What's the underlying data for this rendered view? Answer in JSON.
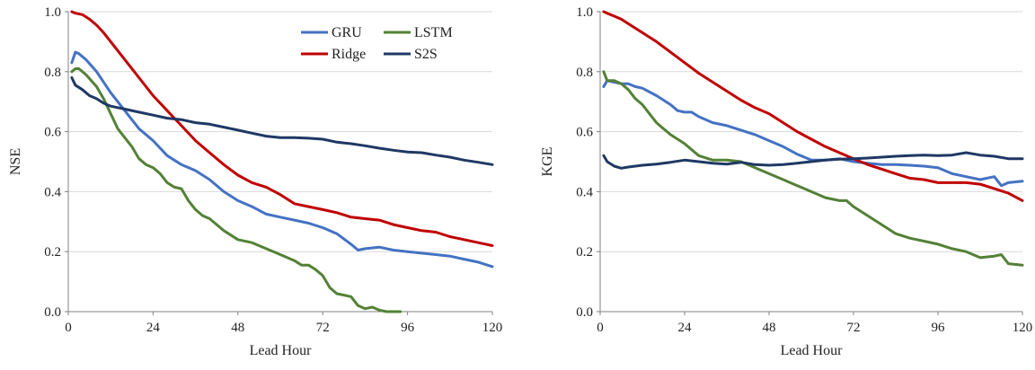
{
  "colors": {
    "GRU": "#4472C4",
    "LSTM": "#538135",
    "Ridge": "#C00000",
    "S2S": "#1F3864"
  },
  "legend_order": [
    "GRU",
    "LSTM",
    "Ridge",
    "S2S"
  ],
  "chart_data": [
    {
      "type": "line",
      "title": "",
      "xlabel": "Lead Hour",
      "ylabel": "NSE",
      "xlim": [
        0,
        120
      ],
      "ylim": [
        0,
        1.0
      ],
      "xticks": [
        0,
        24,
        48,
        72,
        96,
        120
      ],
      "yticks": [
        0,
        0.2,
        0.4,
        0.6,
        0.8,
        1.0
      ],
      "xtick_labels": [
        "0",
        "24",
        "48",
        "72",
        "96",
        "120"
      ],
      "ytick_labels": [
        "0.0",
        "0.2",
        "0.4",
        "0.6",
        "0.8",
        "1.0"
      ],
      "grid": "horizontal",
      "legend": "top-right",
      "series": [
        {
          "name": "GRU",
          "x": [
            1,
            2,
            3,
            5,
            8,
            12,
            16,
            20,
            24,
            28,
            32,
            36,
            40,
            44,
            48,
            52,
            56,
            60,
            64,
            68,
            72,
            76,
            80,
            82,
            84,
            88,
            92,
            96,
            100,
            104,
            108,
            112,
            116,
            120
          ],
          "y": [
            0.83,
            0.865,
            0.86,
            0.84,
            0.8,
            0.73,
            0.67,
            0.61,
            0.57,
            0.52,
            0.49,
            0.47,
            0.44,
            0.4,
            0.37,
            0.35,
            0.325,
            0.315,
            0.305,
            0.295,
            0.28,
            0.26,
            0.225,
            0.205,
            0.21,
            0.215,
            0.205,
            0.2,
            0.195,
            0.19,
            0.185,
            0.175,
            0.165,
            0.15
          ]
        },
        {
          "name": "LSTM",
          "x": [
            1,
            2,
            3,
            5,
            8,
            10,
            12,
            14,
            16,
            18,
            20,
            22,
            24,
            26,
            28,
            30,
            32,
            34,
            36,
            38,
            40,
            44,
            48,
            52,
            56,
            60,
            64,
            66,
            68,
            70,
            72,
            74,
            76,
            78,
            80,
            82,
            84,
            86,
            88,
            90,
            92,
            94
          ],
          "y": [
            0.8,
            0.81,
            0.81,
            0.79,
            0.75,
            0.71,
            0.66,
            0.61,
            0.58,
            0.55,
            0.51,
            0.49,
            0.48,
            0.46,
            0.43,
            0.415,
            0.41,
            0.37,
            0.34,
            0.32,
            0.31,
            0.27,
            0.24,
            0.23,
            0.21,
            0.19,
            0.17,
            0.155,
            0.155,
            0.14,
            0.12,
            0.08,
            0.06,
            0.055,
            0.05,
            0.02,
            0.01,
            0.015,
            0.005,
            0.0,
            0.0,
            0.0
          ]
        },
        {
          "name": "Ridge",
          "x": [
            1,
            2,
            4,
            6,
            8,
            10,
            12,
            16,
            20,
            24,
            28,
            32,
            36,
            40,
            44,
            48,
            52,
            56,
            60,
            64,
            68,
            72,
            76,
            80,
            84,
            88,
            92,
            96,
            100,
            104,
            108,
            112,
            116,
            120
          ],
          "y": [
            1.0,
            0.995,
            0.99,
            0.975,
            0.955,
            0.93,
            0.9,
            0.84,
            0.78,
            0.72,
            0.67,
            0.62,
            0.57,
            0.53,
            0.49,
            0.455,
            0.43,
            0.415,
            0.39,
            0.36,
            0.35,
            0.34,
            0.33,
            0.315,
            0.31,
            0.305,
            0.29,
            0.28,
            0.27,
            0.265,
            0.25,
            0.24,
            0.23,
            0.22
          ]
        },
        {
          "name": "S2S",
          "x": [
            1,
            2,
            4,
            6,
            8,
            10,
            12,
            16,
            20,
            24,
            28,
            32,
            36,
            40,
            44,
            48,
            52,
            56,
            60,
            64,
            68,
            72,
            76,
            80,
            84,
            88,
            92,
            96,
            100,
            104,
            108,
            112,
            116,
            120
          ],
          "y": [
            0.78,
            0.755,
            0.74,
            0.72,
            0.71,
            0.695,
            0.685,
            0.675,
            0.665,
            0.655,
            0.645,
            0.64,
            0.63,
            0.625,
            0.615,
            0.605,
            0.595,
            0.585,
            0.58,
            0.58,
            0.578,
            0.575,
            0.565,
            0.56,
            0.553,
            0.545,
            0.538,
            0.532,
            0.53,
            0.522,
            0.515,
            0.505,
            0.498,
            0.49
          ]
        }
      ]
    },
    {
      "type": "line",
      "title": "",
      "xlabel": "Lead Hour",
      "ylabel": "KGE",
      "xlim": [
        0,
        120
      ],
      "ylim": [
        0,
        1.0
      ],
      "xticks": [
        0,
        24,
        48,
        72,
        96,
        120
      ],
      "yticks": [
        0,
        0.2,
        0.4,
        0.6,
        0.8,
        1.0
      ],
      "xtick_labels": [
        "0",
        "24",
        "48",
        "72",
        "96",
        "120"
      ],
      "ytick_labels": [
        "0.0",
        "0.2",
        "0.4",
        "0.6",
        "0.8",
        "1.0"
      ],
      "grid": "horizontal",
      "legend": "none",
      "series": [
        {
          "name": "GRU",
          "x": [
            1,
            2,
            4,
            6,
            8,
            10,
            12,
            16,
            20,
            22,
            24,
            26,
            28,
            32,
            36,
            40,
            44,
            48,
            52,
            56,
            60,
            64,
            68,
            72,
            76,
            80,
            84,
            88,
            92,
            96,
            100,
            104,
            108,
            112,
            114,
            116,
            120
          ],
          "y": [
            0.75,
            0.77,
            0.765,
            0.76,
            0.76,
            0.75,
            0.745,
            0.72,
            0.69,
            0.67,
            0.665,
            0.665,
            0.65,
            0.63,
            0.62,
            0.605,
            0.59,
            0.57,
            0.55,
            0.525,
            0.505,
            0.505,
            0.51,
            0.5,
            0.495,
            0.49,
            0.49,
            0.488,
            0.485,
            0.48,
            0.46,
            0.45,
            0.44,
            0.45,
            0.42,
            0.43,
            0.435
          ]
        },
        {
          "name": "LSTM",
          "x": [
            1,
            2,
            4,
            6,
            8,
            10,
            12,
            14,
            16,
            18,
            20,
            24,
            28,
            32,
            36,
            40,
            44,
            48,
            52,
            56,
            60,
            64,
            68,
            70,
            72,
            76,
            80,
            84,
            88,
            92,
            96,
            100,
            104,
            108,
            112,
            114,
            116,
            120
          ],
          "y": [
            0.8,
            0.77,
            0.77,
            0.76,
            0.74,
            0.71,
            0.69,
            0.66,
            0.63,
            0.61,
            0.59,
            0.56,
            0.52,
            0.505,
            0.505,
            0.5,
            0.48,
            0.46,
            0.44,
            0.42,
            0.4,
            0.38,
            0.37,
            0.37,
            0.35,
            0.32,
            0.29,
            0.26,
            0.245,
            0.235,
            0.225,
            0.21,
            0.2,
            0.18,
            0.185,
            0.19,
            0.16,
            0.155
          ]
        },
        {
          "name": "Ridge",
          "x": [
            1,
            2,
            4,
            6,
            8,
            12,
            16,
            20,
            24,
            28,
            32,
            36,
            40,
            44,
            48,
            52,
            56,
            60,
            64,
            68,
            72,
            76,
            80,
            84,
            88,
            92,
            96,
            100,
            104,
            108,
            112,
            116,
            120
          ],
          "y": [
            1.0,
            0.995,
            0.985,
            0.975,
            0.96,
            0.93,
            0.9,
            0.865,
            0.83,
            0.795,
            0.765,
            0.735,
            0.705,
            0.68,
            0.66,
            0.63,
            0.6,
            0.575,
            0.55,
            0.53,
            0.51,
            0.49,
            0.475,
            0.46,
            0.445,
            0.44,
            0.43,
            0.43,
            0.43,
            0.425,
            0.41,
            0.395,
            0.37
          ]
        },
        {
          "name": "S2S",
          "x": [
            1,
            2,
            4,
            6,
            8,
            10,
            12,
            16,
            20,
            24,
            28,
            32,
            36,
            40,
            44,
            48,
            52,
            56,
            60,
            64,
            68,
            72,
            76,
            80,
            84,
            88,
            92,
            96,
            100,
            104,
            108,
            112,
            116,
            120
          ],
          "y": [
            0.52,
            0.5,
            0.485,
            0.478,
            0.482,
            0.485,
            0.488,
            0.492,
            0.498,
            0.505,
            0.5,
            0.495,
            0.492,
            0.498,
            0.49,
            0.488,
            0.49,
            0.495,
            0.5,
            0.505,
            0.508,
            0.51,
            0.512,
            0.515,
            0.518,
            0.52,
            0.522,
            0.52,
            0.522,
            0.53,
            0.522,
            0.518,
            0.51,
            0.51
          ]
        }
      ]
    }
  ]
}
